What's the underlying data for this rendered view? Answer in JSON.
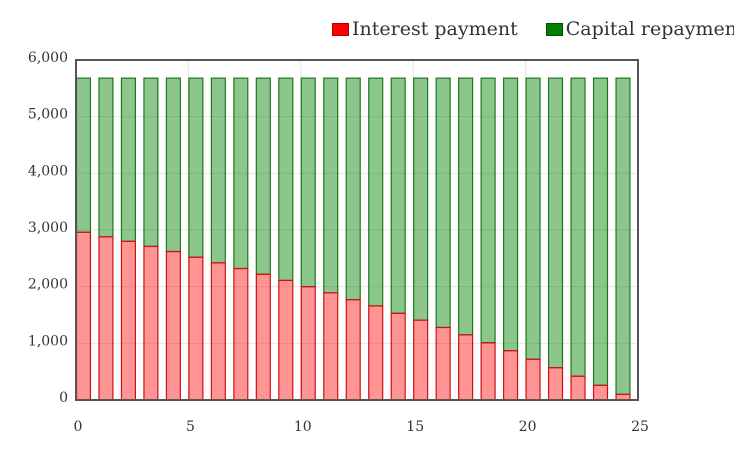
{
  "chart_data": {
    "type": "bar",
    "stacked": true,
    "title": "",
    "xlabel": "",
    "ylabel": "",
    "xlim": [
      0,
      25
    ],
    "ylim": [
      0,
      6000
    ],
    "x_ticks": [
      "0",
      "5",
      "10",
      "15",
      "20",
      "25"
    ],
    "y_ticks": [
      "0",
      "1,000",
      "2,000",
      "3,000",
      "4,000",
      "5,000",
      "6,000"
    ],
    "grid": true,
    "legend_position": "top-right",
    "x": [
      0,
      1,
      2,
      3,
      4,
      5,
      6,
      7,
      8,
      9,
      10,
      11,
      12,
      13,
      14,
      15,
      16,
      17,
      18,
      19,
      20,
      21,
      22,
      23,
      24
    ],
    "series": [
      {
        "name": "Interest payment",
        "color": "#ff0000",
        "values": [
          2960,
          2880,
          2800,
          2710,
          2620,
          2520,
          2420,
          2320,
          2220,
          2110,
          2000,
          1890,
          1770,
          1660,
          1530,
          1410,
          1280,
          1150,
          1010,
          870,
          720,
          570,
          420,
          260,
          100
        ]
      },
      {
        "name": "Capital repayment",
        "color": "#008000",
        "values": [
          2720,
          2800,
          2880,
          2970,
          3060,
          3160,
          3260,
          3360,
          3460,
          3570,
          3680,
          3790,
          3910,
          4020,
          4150,
          4270,
          4400,
          4530,
          4670,
          4810,
          4960,
          5110,
          5260,
          5420,
          5580
        ]
      }
    ]
  }
}
